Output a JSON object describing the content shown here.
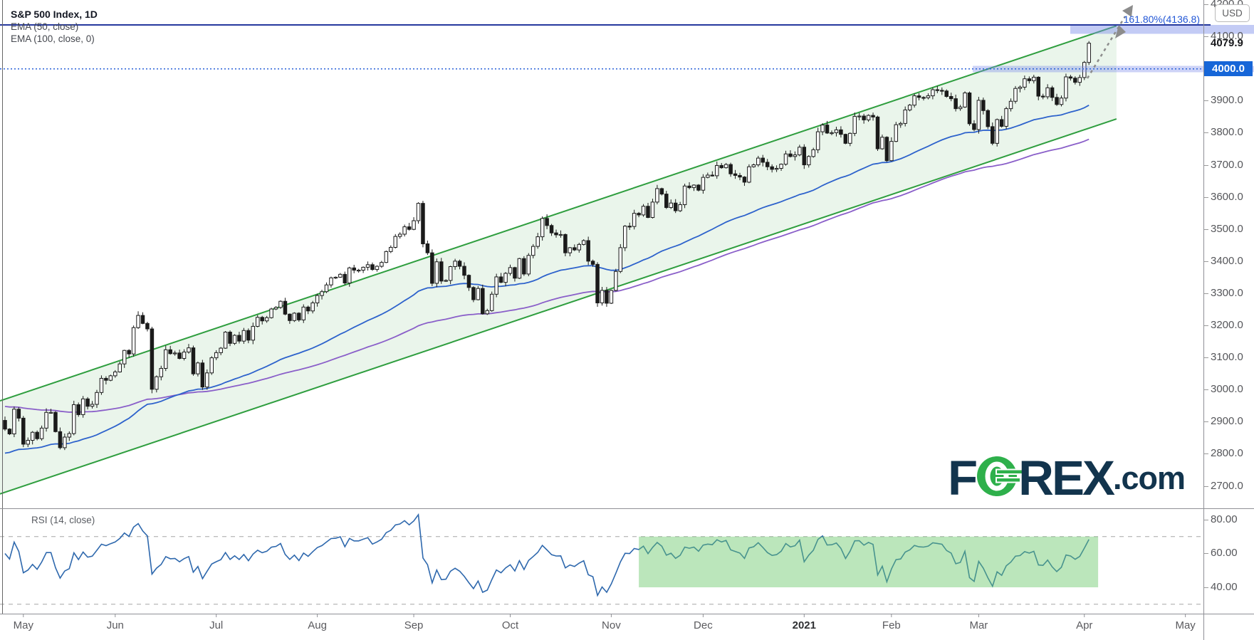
{
  "header": {
    "title": "S&P 500 Index, 1D",
    "ema50": "EMA (50, close)",
    "ema100": "EMA (100, close, 0)"
  },
  "rsi_pane": {
    "label": "RSI (14, close)",
    "ticks": [
      "80.00",
      "60.00",
      "40.00"
    ],
    "overbought": 70,
    "oversold": 30,
    "zone_box": {
      "from_value": 40,
      "to_value": 70,
      "start_index": 138,
      "end_index": 238
    }
  },
  "price_axis": {
    "currency": "USD",
    "ticks": [
      "4200.0",
      "4100.0",
      "3900.0",
      "3800.0",
      "3700.0",
      "3600.0",
      "3500.0",
      "3400.0",
      "3300.0",
      "3200.0",
      "3100.0",
      "3000.0",
      "2900.0",
      "2800.0",
      "2700.0"
    ],
    "last_price": "4079.9",
    "highlight_level": "4000.0"
  },
  "annotations": {
    "fib_label": "161.80%(4136.8)",
    "fib_price": 4136.8,
    "round_level": 4000.0
  },
  "time_axis": [
    {
      "label": "May",
      "index": 4
    },
    {
      "label": "Jun",
      "index": 24
    },
    {
      "label": "Jul",
      "index": 46
    },
    {
      "label": "Aug",
      "index": 68
    },
    {
      "label": "Sep",
      "index": 89
    },
    {
      "label": "Oct",
      "index": 110
    },
    {
      "label": "Nov",
      "index": 132
    },
    {
      "label": "Dec",
      "index": 152
    },
    {
      "label": "2021",
      "index": 174,
      "bold": true
    },
    {
      "label": "Feb",
      "index": 193
    },
    {
      "label": "Mar",
      "index": 212
    },
    {
      "label": "Apr",
      "index": 235
    },
    {
      "label": "May",
      "index": 257
    }
  ],
  "logo": {
    "f": "F",
    "rex": "REX",
    "com": ".com"
  },
  "colors": {
    "channel_line": "#2f9e3f",
    "channel_fill": "rgba(94,175,102,0.13)",
    "ema50": "#2d62cc",
    "ema100": "#8a5fc9",
    "rsi_line": "#2e68ad",
    "level_line": "#26399e",
    "level_band": "rgba(123,140,233,0.45)",
    "round_band": "rgba(123,140,233,0.38)",
    "round_dotted": "#2962d9",
    "chip_bg": "#1666d8",
    "candle_up": "#ffffff",
    "candle_down": "#1a1a1a",
    "rsi_zone": "rgba(105,200,105,0.45)",
    "arrow": "#8c8c8c",
    "logo_navy": "#12344d",
    "logo_green": "#2eb04b"
  },
  "chart_data": {
    "type": "candlestick",
    "title": "S&P 500 Index, 1D",
    "x_description": "Daily trading days, late Apr 2020 through 5 Apr 2021",
    "first_open": 2905,
    "closes": [
      2878,
      2863,
      2940,
      2912,
      2831,
      2843,
      2868,
      2848,
      2881,
      2930,
      2930,
      2870,
      2820,
      2853,
      2864,
      2954,
      2923,
      2972,
      2949,
      2955,
      2992,
      3036,
      3030,
      3044,
      3056,
      3081,
      3123,
      3112,
      3194,
      3232,
      3207,
      3190,
      3002,
      3041,
      3067,
      3125,
      3113,
      3115,
      3098,
      3118,
      3131,
      3050,
      3084,
      3009,
      3053,
      3100,
      3116,
      3130,
      3180,
      3145,
      3170,
      3152,
      3185,
      3155,
      3198,
      3226,
      3215,
      3225,
      3252,
      3257,
      3276,
      3236,
      3216,
      3239,
      3218,
      3258,
      3246,
      3271,
      3294,
      3306,
      3327,
      3349,
      3351,
      3360,
      3333,
      3380,
      3373,
      3373,
      3382,
      3390,
      3375,
      3385,
      3397,
      3431,
      3444,
      3478,
      3485,
      3508,
      3500,
      3527,
      3581,
      3455,
      3427,
      3332,
      3399,
      3339,
      3341,
      3384,
      3401,
      3385,
      3357,
      3319,
      3281,
      3316,
      3237,
      3247,
      3298,
      3352,
      3335,
      3363,
      3381,
      3348,
      3409,
      3361,
      3419,
      3447,
      3477,
      3534,
      3512,
      3489,
      3483,
      3484,
      3427,
      3443,
      3436,
      3453,
      3465,
      3401,
      3391,
      3271,
      3310,
      3270,
      3310,
      3369,
      3443,
      3510,
      3509,
      3550,
      3545,
      3572,
      3537,
      3585,
      3627,
      3610,
      3568,
      3582,
      3558,
      3577,
      3635,
      3630,
      3638,
      3622,
      3662,
      3669,
      3667,
      3699,
      3692,
      3702,
      3673,
      3668,
      3663,
      3647,
      3695,
      3701,
      3722,
      3709,
      3695,
      3687,
      3690,
      3703,
      3735,
      3727,
      3732,
      3756,
      3701,
      3727,
      3748,
      3804,
      3825,
      3800,
      3801,
      3810,
      3796,
      3768,
      3799,
      3852,
      3853,
      3841,
      3855,
      3850,
      3751,
      3787,
      3714,
      3774,
      3826,
      3830,
      3872,
      3887,
      3916,
      3911,
      3910,
      3916,
      3935,
      3933,
      3931,
      3914,
      3907,
      3876,
      3881,
      3925,
      3829,
      3811,
      3902,
      3870,
      3820,
      3768,
      3842,
      3821,
      3876,
      3899,
      3939,
      3943,
      3969,
      3963,
      3974,
      3915,
      3913,
      3941,
      3911,
      3889,
      3909,
      3975,
      3971,
      3958,
      3973,
      4020,
      4079.9
    ],
    "ema50": {
      "period": 50,
      "seed": 2800
    },
    "ema100": {
      "period": 100,
      "seed": 2950
    },
    "rsi": {
      "period": 14,
      "seed_avg_gain": 12,
      "seed_avg_loss": 8
    },
    "channel": {
      "upper_price_at_left": 2966,
      "upper_price_at_right": 4134,
      "width_points": 290,
      "end_index": 242
    },
    "levels": {
      "horizontal_line": 4136.8,
      "fib_extension_pct": "161.80%",
      "round_level": 4000.0
    },
    "ylim": [
      2631,
      4214
    ],
    "rsi_ylim": [
      24,
      87
    ],
    "grid": false,
    "legend_position": "top-left"
  }
}
